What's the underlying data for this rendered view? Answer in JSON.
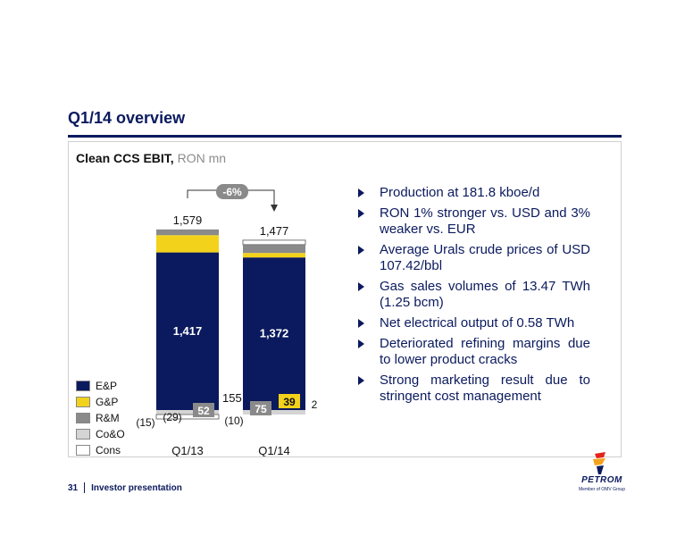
{
  "slide": {
    "title": "Q1/14 overview"
  },
  "chart": {
    "title": "Clean CCS EBIT,",
    "unit": " RON mn",
    "change_badge": "-6%",
    "legend": [
      {
        "label": "E&P",
        "color": "#0b1a5e"
      },
      {
        "label": "G&P",
        "color": "#f3d21b"
      },
      {
        "label": "R&M",
        "color": "#8a8a8a"
      },
      {
        "label": "Co&O",
        "color": "#d4d4d4"
      },
      {
        "label": "Cons",
        "color": "#ffffff"
      }
    ]
  },
  "chart_data": {
    "type": "bar",
    "stacked": true,
    "categories": [
      "Q1/13",
      "Q1/14"
    ],
    "totals": [
      1579,
      1477
    ],
    "series": [
      {
        "name": "E&P",
        "values": [
          1417,
          1372
        ],
        "labels": [
          "1,417",
          "1,372"
        ]
      },
      {
        "name": "G&P",
        "values": [
          155,
          39
        ],
        "labels": [
          "155",
          "39"
        ]
      },
      {
        "name": "R&M",
        "values": [
          52,
          75
        ],
        "labels": [
          "52",
          "75"
        ]
      },
      {
        "name": "Co&O",
        "values": [
          -29,
          -10
        ],
        "labels": [
          "(29)",
          "(10)"
        ]
      },
      {
        "name": "Cons",
        "values": [
          -15,
          2
        ],
        "labels": [
          "(15)",
          "2"
        ]
      }
    ],
    "total_labels": [
      "1,579",
      "1,477"
    ],
    "change_label": "-6%"
  },
  "bullets": [
    "Production at 181.8 kboe/d",
    "RON 1% stronger vs. USD and 3% weaker vs. EUR",
    "Average Urals crude prices of USD 107.42/bbl",
    "Gas sales volumes of 13.47 TWh (1.25 bcm)",
    "Net electrical output of 0.58 TWh",
    "Deteriorated refining margins due to lower product cracks",
    "Strong marketing result due to stringent cost management"
  ],
  "footer": {
    "page": "31",
    "label": "Investor presentation"
  },
  "logo": {
    "word": "PETROM",
    "sub": "Member of OMV Group"
  }
}
